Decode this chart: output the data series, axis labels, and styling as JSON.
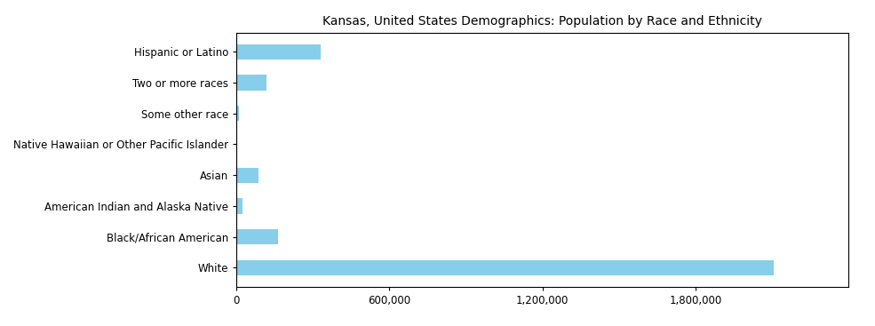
{
  "title": "Kansas, United States Demographics: Population by Race and Ethnicity",
  "categories": [
    "White",
    "Black/African American",
    "American Indian and Alaska Native",
    "Asian",
    "Native Hawaiian or Other Pacific Islander",
    "Some other race",
    "Two or more races",
    "Hispanic or Latino"
  ],
  "values": [
    2107408,
    163015,
    24330,
    88000,
    4200,
    10500,
    118000,
    330000
  ],
  "bar_color": "#87CEEB",
  "xlim": [
    0,
    2400000
  ],
  "xticks": [
    0,
    600000,
    1200000,
    1800000
  ],
  "xtick_labels": [
    "0",
    "600,000",
    "1,200,000",
    "1,800,000"
  ],
  "background_color": "#ffffff",
  "title_fontsize": 10,
  "tick_fontsize": 8.5,
  "label_fontsize": 8.5,
  "bar_height": 0.5
}
